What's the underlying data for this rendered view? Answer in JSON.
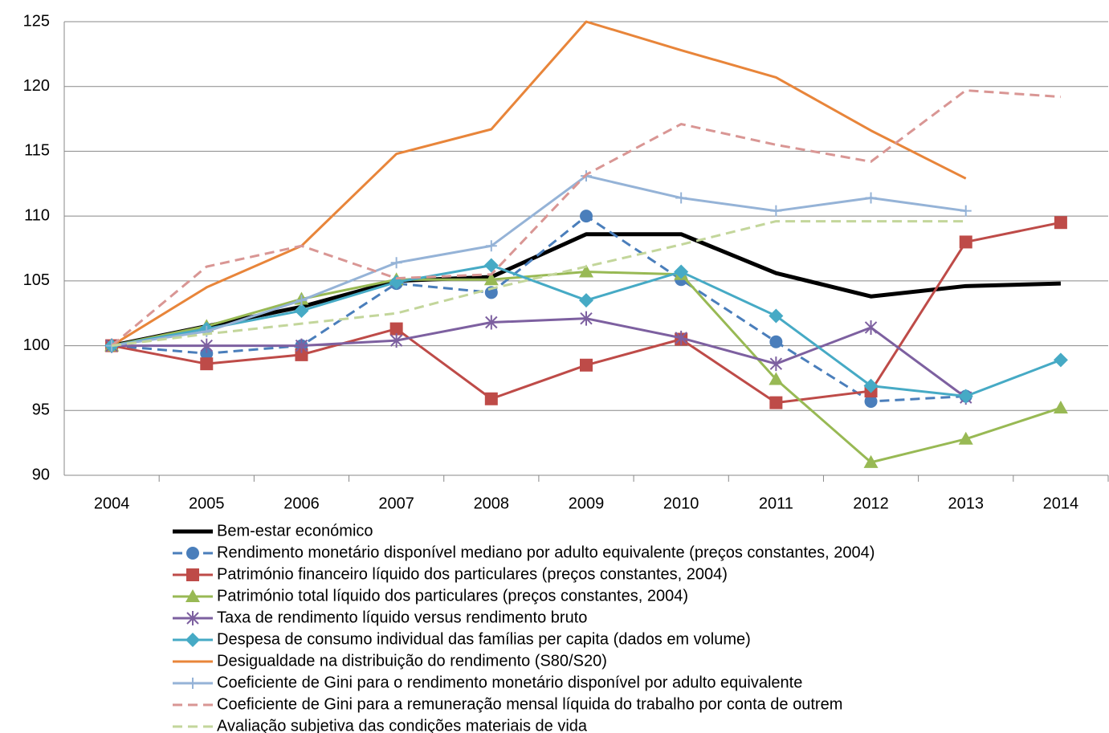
{
  "chart_data": {
    "type": "line",
    "categories": [
      "2004",
      "2005",
      "2006",
      "2007",
      "2008",
      "2009",
      "2010",
      "2011",
      "2012",
      "2013",
      "2014"
    ],
    "ylim": [
      90,
      125
    ],
    "yticks": [
      90,
      95,
      100,
      105,
      110,
      115,
      120,
      125
    ],
    "grid": true,
    "legend": "bottom",
    "series": [
      {
        "name": "Bem-estar económico",
        "color": "#000000",
        "width": 5,
        "dash": false,
        "marker": "none",
        "values": [
          100,
          101.5,
          103,
          105,
          105.3,
          108.6,
          108.6,
          105.6,
          103.8,
          104.6,
          104.8
        ]
      },
      {
        "name": "Rendimento monetário disponível mediano por adulto equivalente (preços constantes, 2004)",
        "color": "#4a7ebb",
        "width": 3,
        "dash": true,
        "marker": "circle",
        "values": [
          100,
          99.4,
          100,
          104.8,
          104.1,
          110,
          105.1,
          100.3,
          95.7,
          96.1,
          null
        ]
      },
      {
        "name": "Património financeiro líquido dos particulares (preços constantes, 2004)",
        "color": "#be4b48",
        "width": 3,
        "dash": false,
        "marker": "square",
        "values": [
          100,
          98.6,
          99.3,
          101.3,
          95.9,
          98.5,
          100.5,
          95.6,
          96.5,
          108,
          109.5
        ]
      },
      {
        "name": "Património total líquido dos particulares (preços constantes, 2004)",
        "color": "#98b954",
        "width": 3,
        "dash": false,
        "marker": "triangle",
        "values": [
          100,
          101.5,
          103.6,
          105.1,
          105.1,
          105.7,
          105.5,
          97.4,
          91,
          92.8,
          95.2
        ]
      },
      {
        "name": "Taxa de rendimento líquido versus rendimento bruto",
        "color": "#7d60a0",
        "width": 3,
        "dash": false,
        "marker": "star",
        "values": [
          100,
          100,
          100,
          100.4,
          101.8,
          102.1,
          100.6,
          98.6,
          101.4,
          96,
          null
        ]
      },
      {
        "name": "Despesa de consumo individual das famílias per capita (dados em volume)",
        "color": "#46aac5",
        "width": 3,
        "dash": false,
        "marker": "diamond",
        "values": [
          100,
          101.3,
          102.7,
          104.9,
          106.2,
          103.5,
          105.7,
          102.3,
          96.9,
          96.1,
          98.9
        ]
      },
      {
        "name": "Desigualdade na distribuição do rendimento (S80/S20)",
        "color": "#e8853a",
        "width": 3,
        "dash": false,
        "marker": "none",
        "values": [
          100,
          104.5,
          107.7,
          114.8,
          116.7,
          125,
          122.8,
          120.7,
          116.6,
          112.9,
          null
        ]
      },
      {
        "name": "Coeficiente de Gini para o rendimento monetário disponível por adulto equivalente",
        "color": "#95b3d7",
        "width": 3,
        "dash": false,
        "marker": "plus",
        "values": [
          100,
          101.1,
          103.5,
          106.4,
          107.7,
          113.1,
          111.4,
          110.4,
          111.4,
          110.4,
          null
        ]
      },
      {
        "name": "Coeficiente de Gini para a remuneração mensal líquida do trabalho por conta de outrem",
        "color": "#d99694",
        "width": 3,
        "dash": true,
        "marker": "none",
        "values": [
          100,
          106.1,
          107.7,
          105.2,
          105.5,
          113.2,
          117.1,
          115.5,
          114.2,
          119.7,
          119.2
        ]
      },
      {
        "name": "Avaliação subjetiva das condições materiais de vida",
        "color": "#c3d69b",
        "width": 3,
        "dash": true,
        "marker": "none",
        "values": [
          100,
          100.9,
          101.7,
          102.5,
          104.4,
          106.1,
          107.8,
          109.6,
          109.6,
          109.6,
          null
        ]
      }
    ]
  }
}
